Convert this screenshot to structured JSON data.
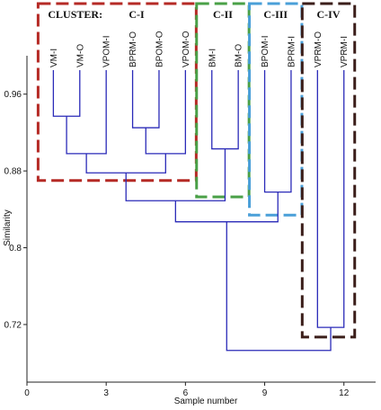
{
  "chart_data": {
    "type": "dendrogram",
    "xlabel": "Sample number",
    "ylabel": "Similarity",
    "xlim": [
      0,
      13.2
    ],
    "ylim": [
      0.66,
      1.0
    ],
    "xticks": [
      0,
      3,
      6,
      9,
      12
    ],
    "yticks": [
      0.72,
      0.8,
      0.88,
      0.96
    ],
    "leaves": [
      {
        "label": "VM-I",
        "x": 1
      },
      {
        "label": "VM-O",
        "x": 2
      },
      {
        "label": "VPOM-I",
        "x": 3
      },
      {
        "label": "BPRM-O",
        "x": 4
      },
      {
        "label": "BPOM-O",
        "x": 5
      },
      {
        "label": "VPOM-O",
        "x": 6
      },
      {
        "label": "BM-I",
        "x": 7
      },
      {
        "label": "BM-O",
        "x": 8
      },
      {
        "label": "BPOM-I",
        "x": 9
      },
      {
        "label": "BPRM-I",
        "x": 10
      },
      {
        "label": "VPRM-O",
        "x": 11
      },
      {
        "label": "VPRM-I",
        "x": 12
      }
    ],
    "merges": [
      {
        "left": "VM-I",
        "right": "VM-O",
        "similarity": 0.937
      },
      {
        "left": "BPRM-O",
        "right": "BPOM-O",
        "similarity": 0.925
      },
      {
        "left": "BM-I",
        "right": "BM-O",
        "similarity": 0.903
      },
      {
        "left": "m0",
        "right": "VPOM-I",
        "similarity": 0.898
      },
      {
        "left": "m1",
        "right": "VPOM-O",
        "similarity": 0.898
      },
      {
        "left": "m3",
        "right": "m4",
        "similarity": 0.878
      },
      {
        "left": "BPOM-I",
        "right": "BPRM-I",
        "similarity": 0.858
      },
      {
        "left": "m5",
        "right": "m2",
        "similarity": 0.849
      },
      {
        "left": "m7",
        "right": "m6",
        "similarity": 0.827
      },
      {
        "left": "VPRM-O",
        "right": "VPRM-I",
        "similarity": 0.717
      },
      {
        "left": "m8",
        "right": "m9",
        "similarity": 0.693
      }
    ],
    "clusters": [
      {
        "label": "CLUSTER:",
        "name": "C-I",
        "first": 1,
        "last": 6,
        "color": "#b52a25"
      },
      {
        "label": "",
        "name": "C-II",
        "first": 7,
        "last": 8,
        "color": "#4aa047"
      },
      {
        "label": "",
        "name": "C-III",
        "first": 9,
        "last": 10,
        "color": "#4a9fd8"
      },
      {
        "label": "",
        "name": "C-IV",
        "first": 11,
        "last": 12,
        "color": "#3b1e1a"
      }
    ],
    "line_color": "#2a2ab8",
    "grid": false
  }
}
